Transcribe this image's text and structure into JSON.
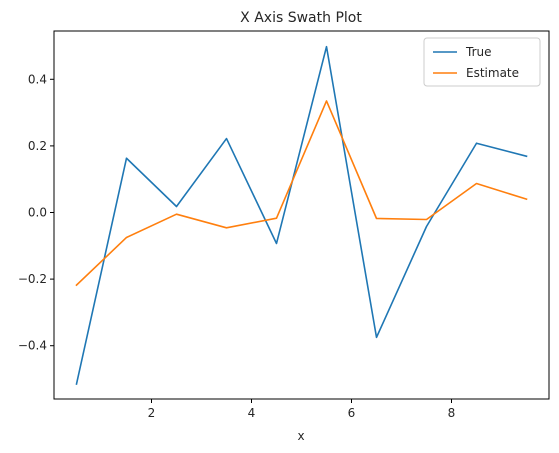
{
  "chart_data": {
    "type": "line",
    "title": "X Axis Swath Plot",
    "xlabel": "x",
    "ylabel": "",
    "xlim": [
      0.05,
      9.95
    ],
    "ylim": [
      -0.56,
      0.545
    ],
    "xticks": [
      2,
      4,
      6,
      8
    ],
    "yticks": [
      -0.4,
      -0.2,
      0.0,
      0.2,
      0.4
    ],
    "xtick_labels": [
      "2",
      "4",
      "6",
      "8"
    ],
    "ytick_labels": [
      "−0.4",
      "−0.2",
      "0.0",
      "0.2",
      "0.4"
    ],
    "grid": false,
    "legend_position": "top-right",
    "x": [
      0.5,
      1.5,
      2.5,
      3.5,
      4.5,
      5.5,
      6.5,
      7.5,
      8.5,
      9.5
    ],
    "series": [
      {
        "name": "True",
        "color": "#1f77b4",
        "values": [
          -0.515,
          0.163,
          0.018,
          0.222,
          -0.093,
          0.498,
          -0.375,
          -0.042,
          0.208,
          0.169
        ]
      },
      {
        "name": "Estimate",
        "color": "#ff7f0e",
        "values": [
          -0.218,
          -0.075,
          -0.005,
          -0.046,
          -0.017,
          0.335,
          -0.018,
          -0.021,
          0.087,
          0.04
        ]
      }
    ]
  }
}
